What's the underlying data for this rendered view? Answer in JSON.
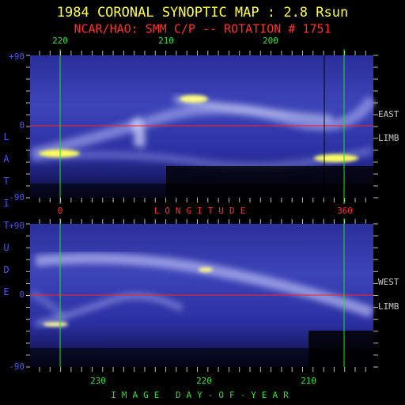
{
  "title": "1984 CORONAL SYNOPTIC MAP : 2.8 Rsun",
  "subtitle": "NCAR/HAO: SMM C/P -- ROTATION # 1751",
  "y_axis_label": "LATITUDE",
  "x_axis_label_middle": "LONGITUDE",
  "x_axis_label_bottom": "IMAGE DAY-OF-YEAR",
  "top_day_ticks": [
    "220",
    "210",
    "200"
  ],
  "longitude_ticks": [
    "0",
    "360"
  ],
  "panels": [
    {
      "y_ticks": [
        "+90",
        "0",
        "-90"
      ],
      "limb": [
        "EAST",
        "LIMB"
      ]
    },
    {
      "y_ticks": [
        "+90",
        "0",
        "-90"
      ],
      "limb": [
        "WEST",
        "LIMB"
      ]
    }
  ],
  "bottom_day_ticks": [
    "230",
    "220",
    "210"
  ]
}
